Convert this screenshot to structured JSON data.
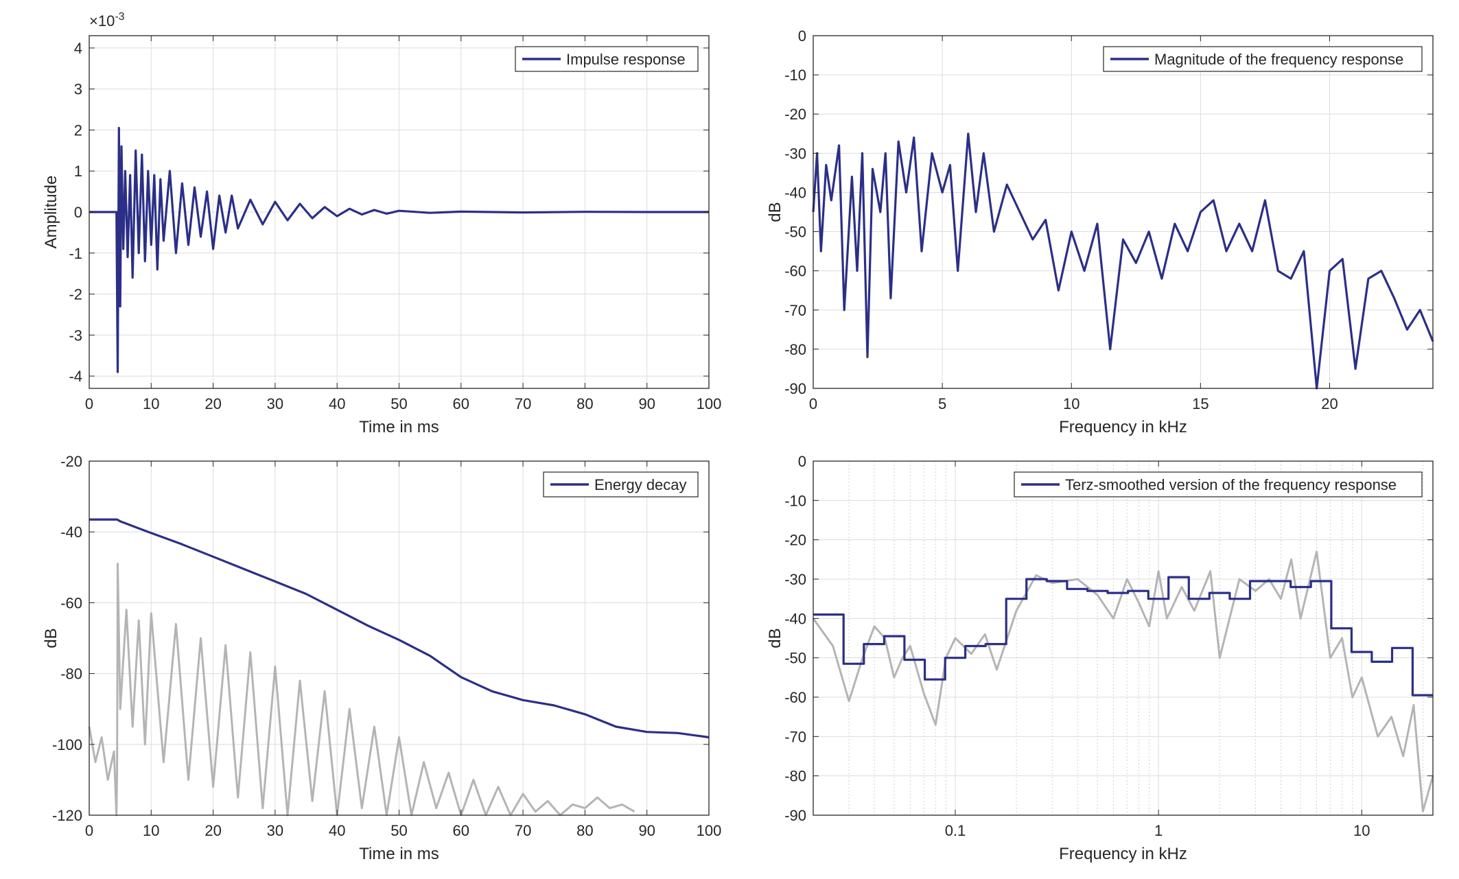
{
  "chart_data": [
    {
      "type": "line",
      "xlabel": "Time in ms",
      "ylabel": "Amplitude",
      "xlim": [
        0,
        100
      ],
      "ylim": [
        -4.3,
        4.3
      ],
      "xticks": [
        0,
        10,
        20,
        30,
        40,
        50,
        60,
        70,
        80,
        90,
        100
      ],
      "yticks": [
        -4,
        -3,
        -2,
        -1,
        0,
        1,
        2,
        3,
        4
      ],
      "exponent_base": "×10",
      "exponent_power": "-3",
      "grid": true,
      "legend_position": "top-right",
      "series": [
        {
          "name": "Impulse response",
          "color": "#2b2f87",
          "x": [
            0,
            4.4,
            4.6,
            4.8,
            5.0,
            5.2,
            5.5,
            5.8,
            6.2,
            6.6,
            7.0,
            7.5,
            8.0,
            8.5,
            9.0,
            9.5,
            10.0,
            10.5,
            11.0,
            11.5,
            12.0,
            13.0,
            14.0,
            15.0,
            16.0,
            17.0,
            18.0,
            19.0,
            20.0,
            21.0,
            22.0,
            23.0,
            24.0,
            26.0,
            28.0,
            30.0,
            32.0,
            34.0,
            36.0,
            38.0,
            40.0,
            42.0,
            44.0,
            46.0,
            48.0,
            50.0,
            55.0,
            60.0,
            70.0,
            80.0,
            90.0,
            100.0
          ],
          "y": [
            0,
            0,
            -3.9,
            2.05,
            -2.3,
            1.6,
            -0.9,
            1.0,
            -1.1,
            0.9,
            -1.6,
            1.5,
            -1.0,
            1.4,
            -1.2,
            1.0,
            -0.8,
            0.9,
            -1.4,
            0.8,
            -0.7,
            1.0,
            -1.0,
            0.7,
            -0.8,
            0.6,
            -0.6,
            0.5,
            -0.9,
            0.4,
            -0.5,
            0.4,
            -0.4,
            0.3,
            -0.3,
            0.25,
            -0.2,
            0.2,
            -0.15,
            0.12,
            -0.1,
            0.08,
            -0.06,
            0.05,
            -0.04,
            0.03,
            -0.02,
            0.01,
            -0.01,
            0.005,
            0,
            0
          ]
        }
      ]
    },
    {
      "type": "line",
      "xlabel": "Frequency in kHz",
      "ylabel": "dB",
      "xlim": [
        0,
        24
      ],
      "ylim": [
        -90,
        0
      ],
      "xticks": [
        0,
        5,
        10,
        15,
        20
      ],
      "yticks": [
        0,
        -10,
        -20,
        -30,
        -40,
        -50,
        -60,
        -70,
        -80,
        -90
      ],
      "grid": true,
      "legend_position": "top-right",
      "series": [
        {
          "name": "Magnitude of the frequency response",
          "color": "#2b2f87",
          "x": [
            0,
            0.15,
            0.3,
            0.5,
            0.7,
            1.0,
            1.2,
            1.5,
            1.7,
            1.9,
            2.1,
            2.3,
            2.6,
            2.8,
            3.0,
            3.3,
            3.6,
            3.9,
            4.2,
            4.6,
            5.0,
            5.3,
            5.6,
            6.0,
            6.3,
            6.6,
            7.0,
            7.5,
            8.0,
            8.5,
            9.0,
            9.5,
            10.0,
            10.5,
            11.0,
            11.5,
            12.0,
            12.5,
            13.0,
            13.5,
            14.0,
            14.5,
            15.0,
            15.5,
            16.0,
            16.5,
            17.0,
            17.5,
            18.0,
            18.5,
            19.0,
            19.5,
            20.0,
            20.5,
            21.0,
            21.5,
            22.0,
            22.5,
            23.0,
            23.5,
            24.0
          ],
          "y": [
            -45,
            -30,
            -55,
            -33,
            -42,
            -28,
            -70,
            -36,
            -60,
            -30,
            -82,
            -34,
            -45,
            -30,
            -67,
            -27,
            -40,
            -26,
            -55,
            -30,
            -40,
            -33,
            -60,
            -25,
            -45,
            -30,
            -50,
            -38,
            -45,
            -52,
            -47,
            -65,
            -50,
            -60,
            -48,
            -80,
            -52,
            -58,
            -50,
            -62,
            -48,
            -55,
            -45,
            -42,
            -55,
            -48,
            -55,
            -42,
            -60,
            -62,
            -55,
            -90,
            -60,
            -57,
            -85,
            -62,
            -60,
            -67,
            -75,
            -70,
            -78
          ]
        }
      ]
    },
    {
      "type": "line",
      "xlabel": "Time in ms",
      "ylabel": "dB",
      "xlim": [
        0,
        100
      ],
      "ylim": [
        -120,
        -20
      ],
      "xticks": [
        0,
        10,
        20,
        30,
        40,
        50,
        60,
        70,
        80,
        90,
        100
      ],
      "yticks": [
        -20,
        -40,
        -60,
        -80,
        -100,
        -120
      ],
      "grid": true,
      "legend_position": "top-right",
      "series": [
        {
          "name": "Energy decay",
          "color": "#2b2f87",
          "x": [
            0,
            4.5,
            5,
            8,
            10,
            15,
            20,
            25,
            30,
            35,
            40,
            45,
            50,
            55,
            60,
            65,
            70,
            75,
            80,
            85,
            90,
            95,
            100
          ],
          "y": [
            -36.5,
            -36.5,
            -37,
            -39,
            -40.3,
            -43.5,
            -47,
            -50.5,
            -54,
            -57.5,
            -62,
            -66.5,
            -70.5,
            -75,
            -81,
            -85,
            -87.5,
            -89,
            -91.5,
            -95,
            -96.5,
            -96.8,
            -98
          ]
        },
        {
          "color": "#b4b4b4",
          "x": [
            0,
            1,
            2,
            3,
            4,
            4.4,
            4.5,
            4.6,
            5,
            6,
            7,
            8,
            9,
            10,
            12,
            14,
            16,
            18,
            20,
            22,
            24,
            26,
            28,
            30,
            32,
            34,
            36,
            38,
            40,
            42,
            44,
            46,
            48,
            50,
            52,
            54,
            56,
            58,
            60,
            62,
            64,
            66,
            68,
            70,
            72,
            74,
            76,
            78,
            80,
            82,
            84,
            86,
            88
          ],
          "y": [
            -95,
            -105,
            -98,
            -110,
            -102,
            -120,
            -108,
            -49,
            -90,
            -62,
            -95,
            -65,
            -100,
            -63,
            -105,
            -66,
            -110,
            -70,
            -112,
            -72,
            -115,
            -74,
            -118,
            -78,
            -120,
            -82,
            -116,
            -85,
            -120,
            -90,
            -118,
            -95,
            -120,
            -98,
            -120,
            -105,
            -118,
            -108,
            -120,
            -110,
            -120,
            -112,
            -120,
            -114,
            -119,
            -116,
            -120,
            -117,
            -118,
            -115,
            -118,
            -117,
            -119
          ]
        }
      ]
    },
    {
      "type": "line",
      "xlabel": "Frequency in kHz",
      "ylabel": "dB",
      "xscale": "log",
      "xlim": [
        0.02,
        22.4
      ],
      "ylim": [
        -90,
        0
      ],
      "xticks": [
        0.1,
        1,
        10
      ],
      "xticklabels": [
        "0.1",
        "1",
        "10"
      ],
      "yticks": [
        0,
        -10,
        -20,
        -30,
        -40,
        -50,
        -60,
        -70,
        -80,
        -90
      ],
      "grid": true,
      "legend_position": "top-right",
      "series": [
        {
          "name": "Terz-smoothed version of the frequency response",
          "color": "#2b2f87",
          "x": [
            0.02,
            0.0224,
            0.0282,
            0.0282,
            0.0355,
            0.0355,
            0.0447,
            0.0447,
            0.0562,
            0.0562,
            0.0708,
            0.0708,
            0.0891,
            0.0891,
            0.112,
            0.112,
            0.141,
            0.141,
            0.178,
            0.178,
            0.224,
            0.224,
            0.282,
            0.282,
            0.355,
            0.355,
            0.447,
            0.447,
            0.562,
            0.562,
            0.708,
            0.708,
            0.891,
            0.891,
            1.12,
            1.12,
            1.41,
            1.41,
            1.78,
            1.78,
            2.24,
            2.24,
            2.82,
            2.82,
            3.55,
            3.55,
            4.47,
            4.47,
            5.62,
            5.62,
            7.08,
            7.08,
            8.91,
            8.91,
            11.2,
            11.2,
            14.1,
            14.1,
            17.8,
            17.8,
            22.4
          ],
          "y": [
            -39,
            -39,
            -39,
            -51.5,
            -51.5,
            -46.5,
            -46.5,
            -44.5,
            -44.5,
            -50.5,
            -50.5,
            -55.5,
            -55.5,
            -50,
            -50,
            -47,
            -47,
            -46.5,
            -46.5,
            -35,
            -35,
            -30,
            -30,
            -30.5,
            -30.5,
            -32.5,
            -32.5,
            -33,
            -33,
            -33.5,
            -33.5,
            -33,
            -33,
            -35,
            -35,
            -29.5,
            -29.5,
            -35,
            -35,
            -33.5,
            -33.5,
            -35,
            -35,
            -30.5,
            -30.5,
            -30.5,
            -30.5,
            -32,
            -32,
            -30.5,
            -30.5,
            -42.5,
            -42.5,
            -48.5,
            -48.5,
            -51,
            -51,
            -47.5,
            -47.5,
            -59.5,
            -59.5
          ]
        },
        {
          "color": "#b4b4b4",
          "x": [
            0.02,
            0.025,
            0.03,
            0.035,
            0.04,
            0.045,
            0.05,
            0.055,
            0.06,
            0.07,
            0.08,
            0.09,
            0.1,
            0.12,
            0.14,
            0.16,
            0.2,
            0.25,
            0.3,
            0.4,
            0.5,
            0.6,
            0.7,
            0.8,
            0.9,
            1.0,
            1.1,
            1.3,
            1.5,
            1.8,
            2.0,
            2.5,
            3.0,
            3.5,
            4.0,
            4.5,
            5.0,
            6.0,
            7.0,
            8.0,
            9.0,
            10.0,
            12.0,
            14.0,
            16.0,
            18.0,
            20.0,
            22.4
          ],
          "y": [
            -40,
            -47,
            -61,
            -50,
            -42,
            -45,
            -55,
            -50,
            -47,
            -59,
            -67,
            -50,
            -45,
            -49,
            -44,
            -53,
            -38,
            -29,
            -31,
            -30,
            -34,
            -40,
            -30,
            -36,
            -42,
            -28,
            -40,
            -32,
            -38,
            -28,
            -50,
            -30,
            -33,
            -30,
            -35,
            -25,
            -40,
            -23,
            -50,
            -45,
            -60,
            -55,
            -70,
            -65,
            -75,
            -62,
            -89,
            -80
          ]
        }
      ]
    }
  ]
}
